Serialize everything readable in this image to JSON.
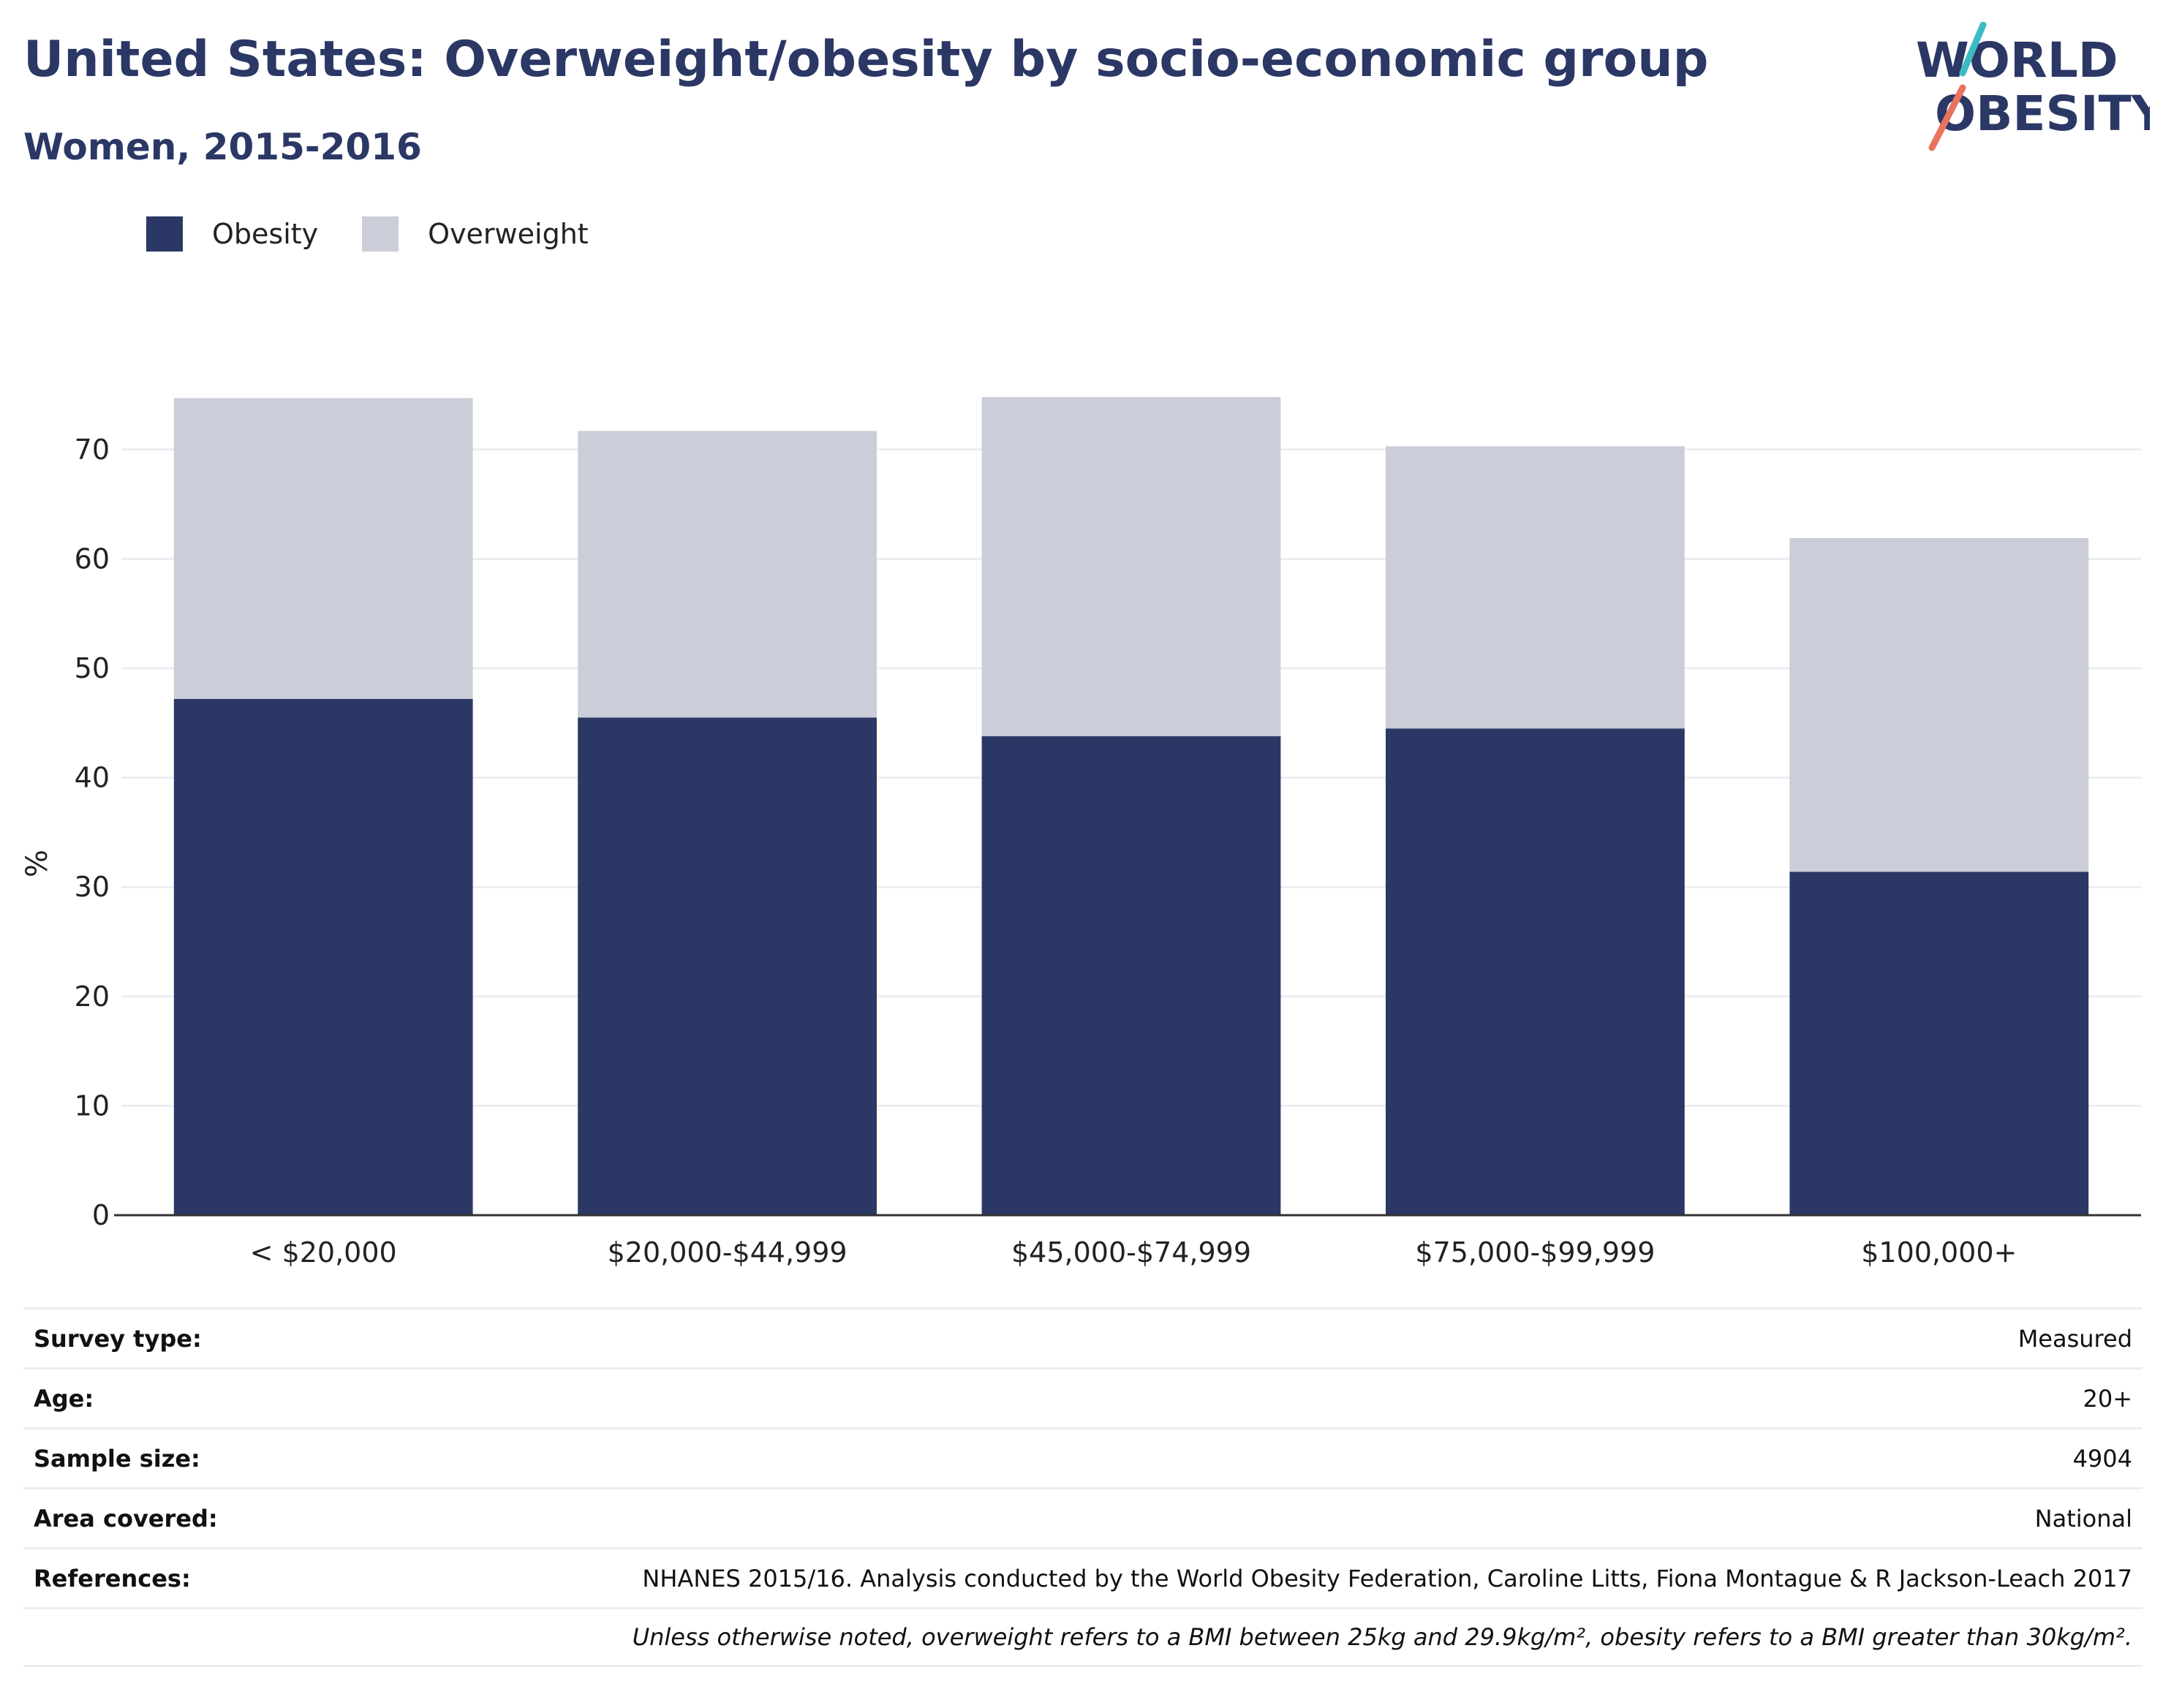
{
  "title": "United States: Overweight/obesity by socio-economic group",
  "subtitle": "Women, 2015-2016",
  "logo": {
    "line1": "WORLD",
    "line2": "OBESITY",
    "colors": {
      "text": "#2b3765",
      "slash_top": "#3bbcc4",
      "slash_bottom": "#e8735f"
    }
  },
  "legend": [
    {
      "label": "Obesity",
      "color": "#2b3765"
    },
    {
      "label": "Overweight",
      "color": "#cbcdd8"
    }
  ],
  "chart_data": {
    "type": "bar",
    "stacked": true,
    "categories": [
      "< $20,000",
      "$20,000-$44,999",
      "$45,000-$74,999",
      "$75,000-$99,999",
      "$100,000+"
    ],
    "series": [
      {
        "name": "Obesity",
        "values": [
          47.2,
          45.5,
          43.8,
          44.5,
          31.4
        ],
        "color": "#2b3765"
      },
      {
        "name": "Overweight",
        "values": [
          27.5,
          26.2,
          31.0,
          25.8,
          30.5
        ],
        "color": "#cbcdd8"
      }
    ],
    "ylabel": "%",
    "xlabel": "",
    "ylim": [
      0,
      75
    ],
    "yticks": [
      0,
      10,
      20,
      30,
      40,
      50,
      60,
      70
    ],
    "grid": true,
    "legend_position": "top-left"
  },
  "meta": {
    "rows": [
      {
        "label": "Survey type:",
        "value": "Measured"
      },
      {
        "label": "Age:",
        "value": "20+"
      },
      {
        "label": "Sample size:",
        "value": "4904"
      },
      {
        "label": "Area covered:",
        "value": "National"
      },
      {
        "label": "References:",
        "value": "NHANES 2015/16. Analysis conducted by the World Obesity Federation, Caroline Litts, Fiona Montague & R Jackson-Leach 2017"
      }
    ],
    "note": "Unless otherwise noted, overweight refers to a BMI between 25kg and 29.9kg/m², obesity refers to a BMI greater than 30kg/m²."
  }
}
